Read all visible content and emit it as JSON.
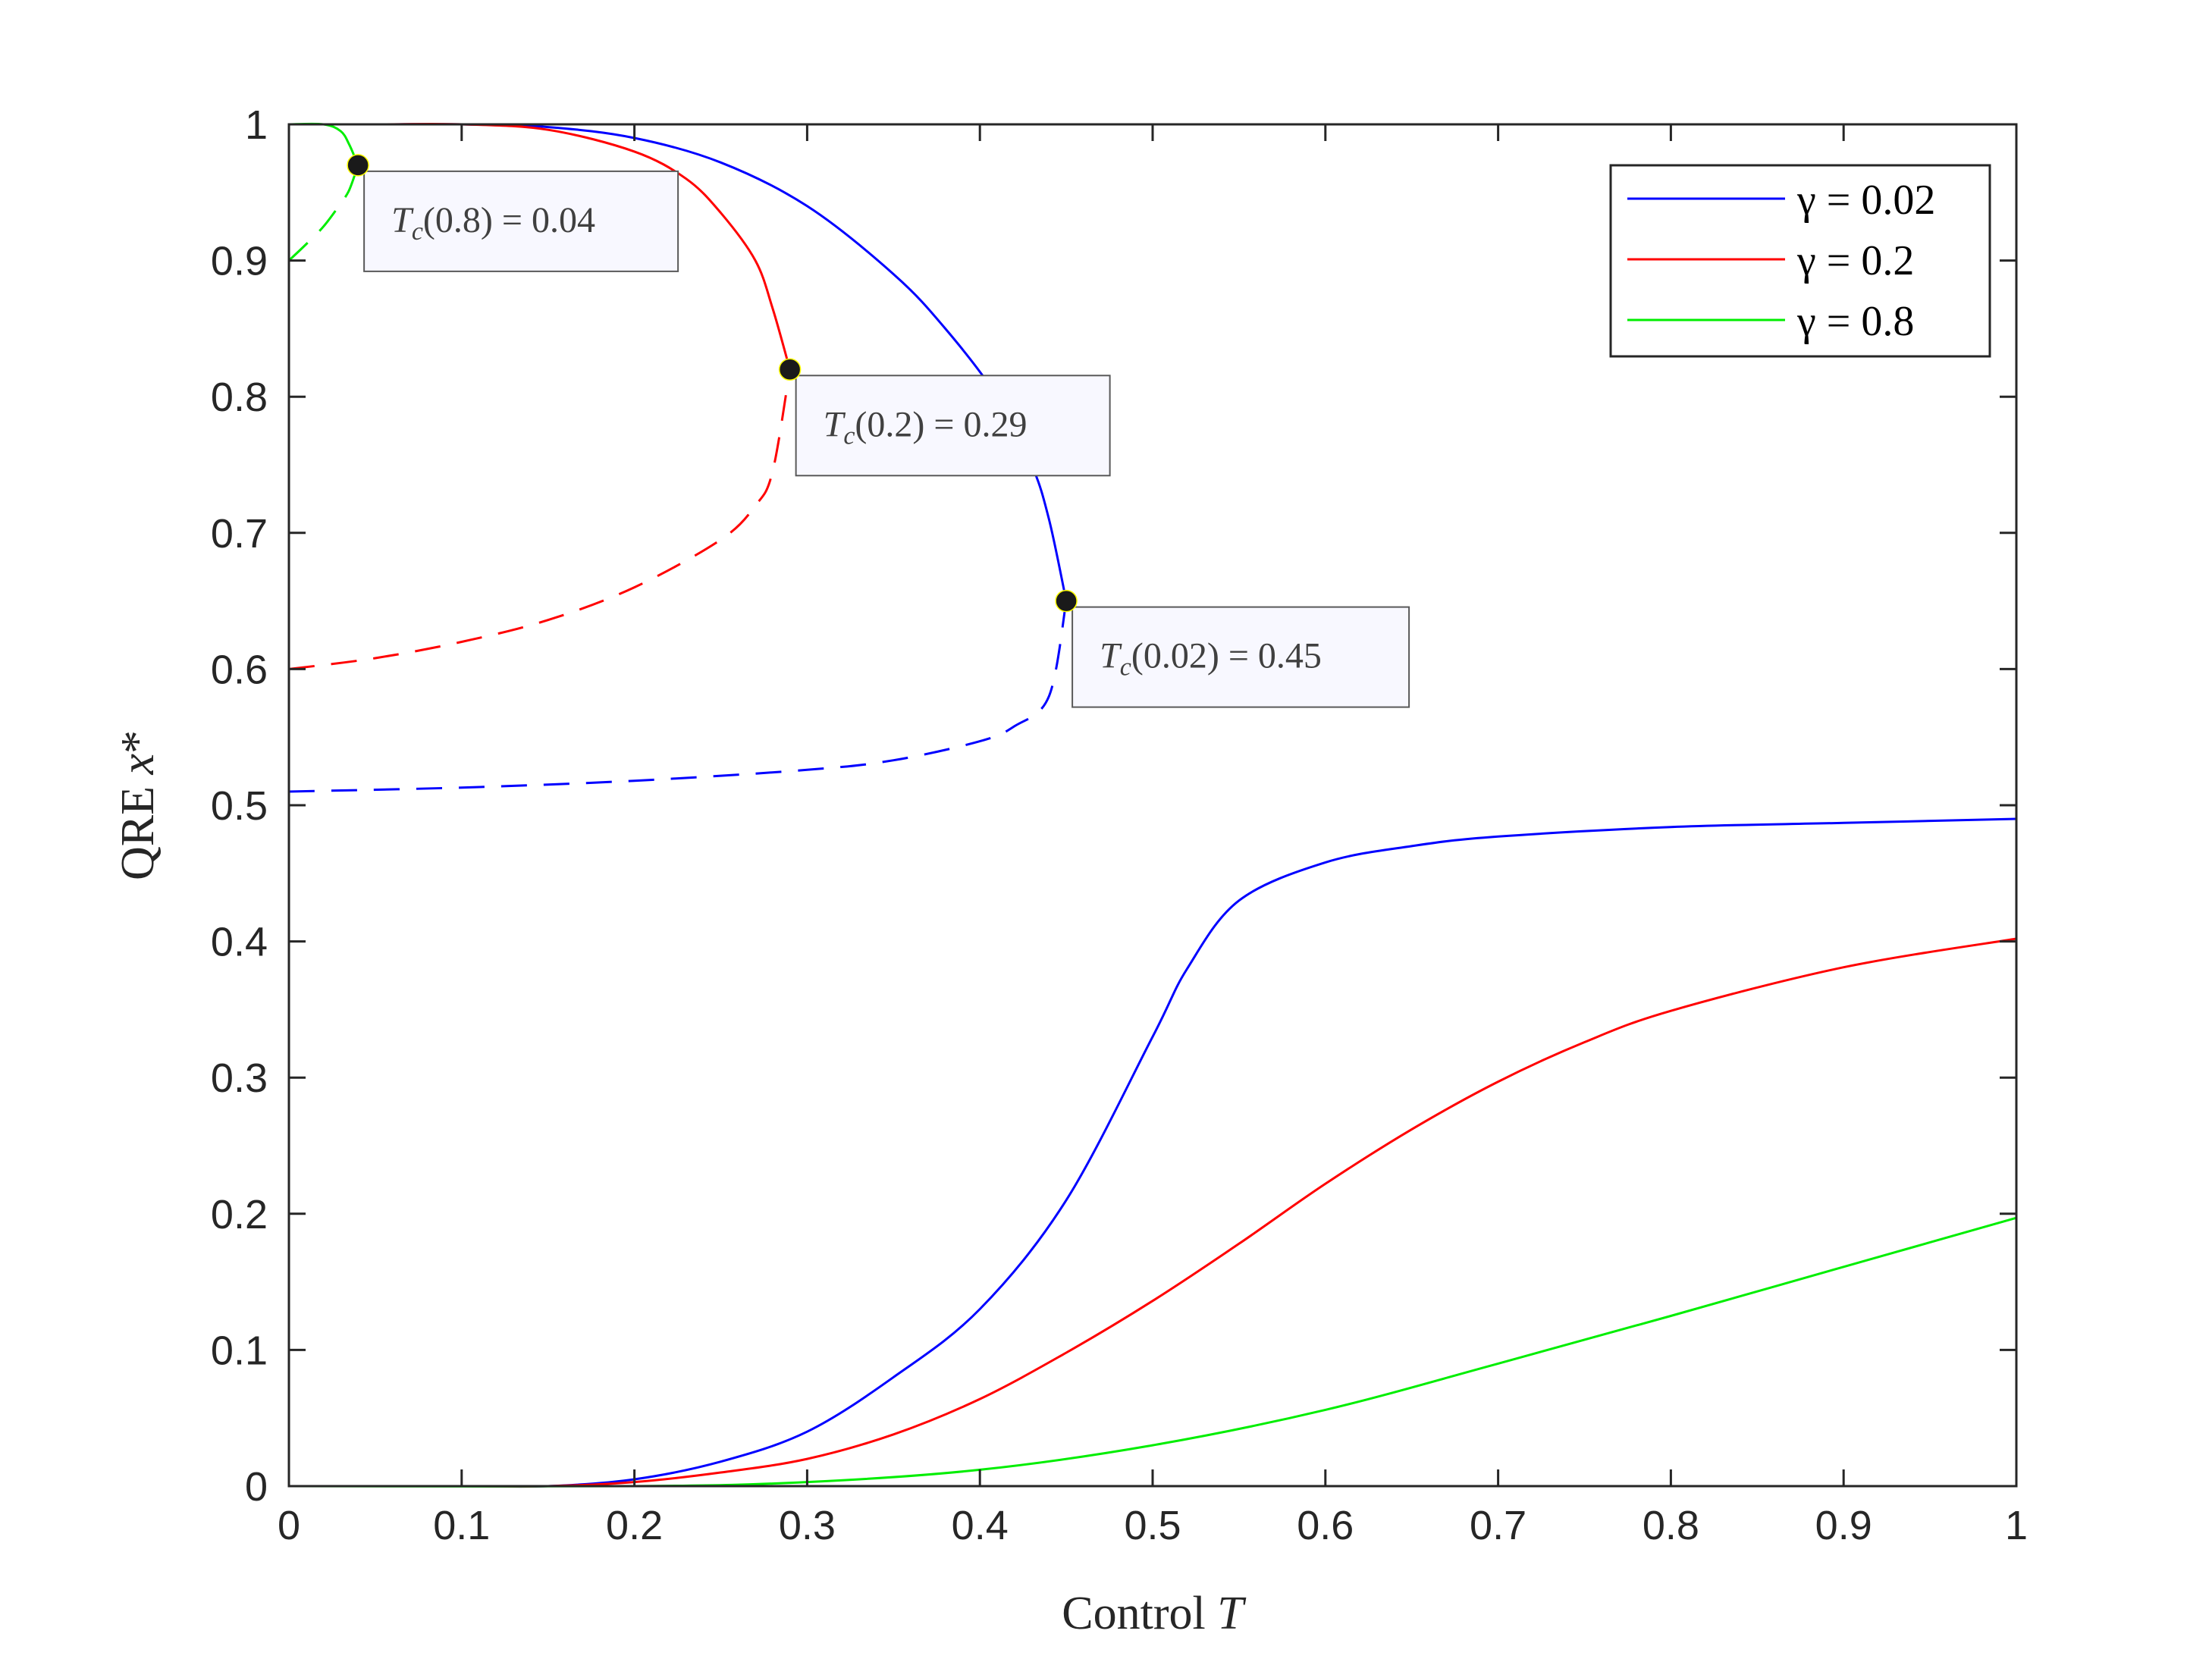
{
  "chart_data": {
    "type": "line",
    "xlabel": "Control T",
    "xlabel_parts": {
      "text": "Control ",
      "math": "T"
    },
    "ylabel": "QRE x*",
    "ylabel_parts": {
      "text": "QRE ",
      "math": "x",
      "suffix": "*"
    },
    "xlim": [
      0,
      1
    ],
    "ylim": [
      0,
      1
    ],
    "xticks": [
      0,
      0.1,
      0.2,
      0.3,
      0.4,
      0.5,
      0.6,
      0.7,
      0.8,
      0.9,
      1
    ],
    "xtick_labels": [
      "0",
      "0.1",
      "0.2",
      "0.3",
      "0.4",
      "0.5",
      "0.6",
      "0.7",
      "0.8",
      "0.9",
      "1"
    ],
    "yticks": [
      0,
      0.1,
      0.2,
      0.3,
      0.4,
      0.5,
      0.6,
      0.7,
      0.8,
      0.9,
      1
    ],
    "ytick_labels": [
      "0",
      "0.1",
      "0.2",
      "0.3",
      "0.4",
      "0.5",
      "0.6",
      "0.7",
      "0.8",
      "0.9",
      "1"
    ],
    "grid": false,
    "legend_position": "top-right",
    "series": [
      {
        "name": "γ = 0.02",
        "color": "#0000ff",
        "upper": {
          "x": [
            0,
            0.05,
            0.1,
            0.15,
            0.2,
            0.25,
            0.3,
            0.35,
            0.38,
            0.41,
            0.43,
            0.44,
            0.45
          ],
          "y": [
            1,
            1,
            1,
            0.998,
            0.99,
            0.972,
            0.94,
            0.89,
            0.85,
            0.8,
            0.75,
            0.71,
            0.65
          ]
        },
        "middle": {
          "x": [
            0,
            0.1,
            0.2,
            0.3,
            0.35,
            0.4,
            0.42,
            0.44,
            0.45
          ],
          "y": [
            0.51,
            0.513,
            0.518,
            0.526,
            0.533,
            0.547,
            0.558,
            0.58,
            0.65
          ]
        },
        "lower": {
          "x": [
            0,
            0.1,
            0.15,
            0.2,
            0.25,
            0.3,
            0.35,
            0.4,
            0.45,
            0.5,
            0.52,
            0.55,
            0.6,
            0.65,
            0.7,
            0.8,
            0.9,
            1
          ],
          "y": [
            0,
            0,
            0,
            0.005,
            0.018,
            0.04,
            0.08,
            0.13,
            0.21,
            0.33,
            0.38,
            0.43,
            0.458,
            0.47,
            0.477,
            0.484,
            0.487,
            0.49
          ]
        }
      },
      {
        "name": "γ = 0.2",
        "color": "#ff0000",
        "upper": {
          "x": [
            0,
            0.05,
            0.1,
            0.15,
            0.2,
            0.23,
            0.25,
            0.27,
            0.28,
            0.29
          ],
          "y": [
            1,
            1,
            1,
            0.996,
            0.98,
            0.96,
            0.935,
            0.9,
            0.865,
            0.82
          ]
        },
        "middle": {
          "x": [
            0,
            0.05,
            0.1,
            0.15,
            0.2,
            0.25,
            0.27,
            0.28,
            0.29
          ],
          "y": [
            0.6,
            0.608,
            0.62,
            0.636,
            0.66,
            0.695,
            0.72,
            0.745,
            0.82
          ]
        },
        "lower": {
          "x": [
            0,
            0.1,
            0.15,
            0.2,
            0.25,
            0.3,
            0.35,
            0.4,
            0.45,
            0.5,
            0.55,
            0.6,
            0.65,
            0.7,
            0.75,
            0.8,
            0.9,
            1
          ],
          "y": [
            0,
            0,
            0,
            0.003,
            0.01,
            0.02,
            0.038,
            0.064,
            0.098,
            0.136,
            0.178,
            0.222,
            0.262,
            0.297,
            0.326,
            0.349,
            0.381,
            0.402
          ]
        }
      },
      {
        "name": "γ = 0.8",
        "color": "#00ee00",
        "upper": {
          "x": [
            0,
            0.02,
            0.03,
            0.035,
            0.04
          ],
          "y": [
            1,
            1,
            0.995,
            0.985,
            0.97
          ]
        },
        "middle": {
          "x": [
            0,
            0.01,
            0.02,
            0.03,
            0.035,
            0.04
          ],
          "y": [
            0.9,
            0.912,
            0.925,
            0.942,
            0.952,
            0.97
          ]
        },
        "lower": {
          "x": [
            0,
            0.2,
            0.3,
            0.4,
            0.5,
            0.6,
            0.7,
            0.8,
            0.9,
            1
          ],
          "y": [
            0,
            0,
            0.003,
            0.012,
            0.03,
            0.056,
            0.09,
            0.125,
            0.161,
            0.197
          ]
        }
      }
    ],
    "annotations": [
      {
        "label": "Tc(0.8) = 0.04",
        "pre": "T",
        "sub": "c",
        "post": "(0.8) = 0.04",
        "x": 0.04,
        "y": 0.97,
        "color": "#0000ff"
      },
      {
        "label": "Tc(0.2) = 0.29",
        "pre": "T",
        "sub": "c",
        "post": "(0.2) = 0.29",
        "x": 0.29,
        "y": 0.82,
        "color": "#ff0000"
      },
      {
        "label": "Tc(0.02) = 0.45",
        "pre": "T",
        "sub": "c",
        "post": "(0.02) = 0.45",
        "x": 0.45,
        "y": 0.65,
        "color": "#0000ff"
      }
    ]
  }
}
